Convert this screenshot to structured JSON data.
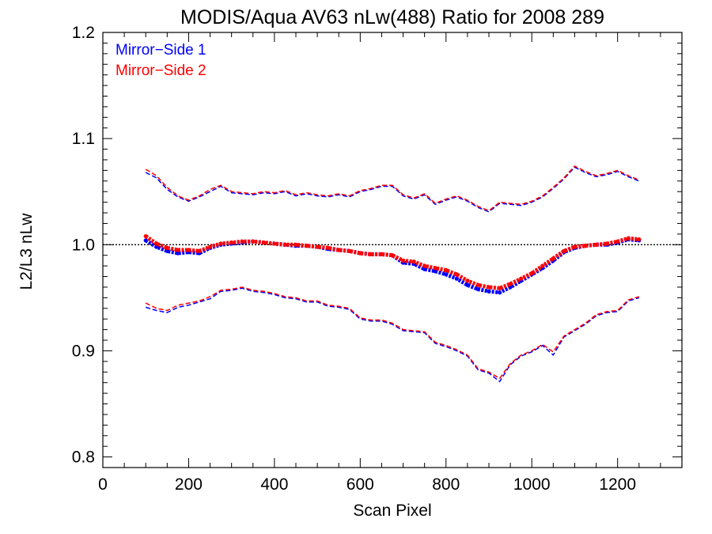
{
  "chart_data": {
    "type": "scatter",
    "title": "MODIS/Aqua AV63 nLw(488) Ratio for 2008 289",
    "xlabel": "Scan Pixel",
    "ylabel": "L2/L3 nLw",
    "xlim": [
      0,
      1350
    ],
    "ylim": [
      0.79,
      1.2
    ],
    "xticks": [
      0,
      200,
      400,
      600,
      800,
      1000,
      1200
    ],
    "xtick_labels": [
      "0",
      "200",
      "400",
      "600",
      "800",
      "1000",
      "1200"
    ],
    "yticks": [
      0.8,
      0.9,
      1.0,
      1.1,
      1.2
    ],
    "ytick_labels": [
      "0.8",
      "0.9",
      "1.0",
      "1.1",
      "1.2"
    ],
    "reference_line": 1.0,
    "legend_position": "top-left",
    "grid": false,
    "colors": {
      "mirror_side_1": "#0000ff",
      "mirror_side_2": "#ff0000"
    },
    "series": [
      {
        "name": "Mirror−Side 1",
        "color": "#0000ff",
        "x": [
          100,
          125,
          150,
          175,
          200,
          225,
          250,
          275,
          300,
          325,
          350,
          375,
          400,
          425,
          450,
          475,
          500,
          525,
          550,
          575,
          600,
          625,
          650,
          675,
          700,
          725,
          750,
          775,
          800,
          825,
          850,
          875,
          900,
          925,
          950,
          975,
          1000,
          1025,
          1050,
          1075,
          1100,
          1125,
          1150,
          1175,
          1200,
          1225,
          1250
        ],
        "mean": [
          1.004,
          0.998,
          0.994,
          0.992,
          0.993,
          0.992,
          0.997,
          1.0,
          1.001,
          1.002,
          1.003,
          1.002,
          1.001,
          1.0,
          0.999,
          0.999,
          0.998,
          0.996,
          0.995,
          0.994,
          0.992,
          0.991,
          0.991,
          0.99,
          0.983,
          0.982,
          0.977,
          0.975,
          0.972,
          0.968,
          0.962,
          0.958,
          0.956,
          0.955,
          0.96,
          0.966,
          0.972,
          0.978,
          0.985,
          0.993,
          0.997,
          0.999,
          1.0,
          1.0,
          1.002,
          1.005,
          1.004
        ],
        "upper": [
          1.068,
          1.063,
          1.052,
          1.045,
          1.041,
          1.045,
          1.05,
          1.055,
          1.049,
          1.048,
          1.047,
          1.049,
          1.048,
          1.05,
          1.046,
          1.048,
          1.046,
          1.045,
          1.047,
          1.045,
          1.05,
          1.052,
          1.055,
          1.055,
          1.046,
          1.043,
          1.047,
          1.038,
          1.042,
          1.045,
          1.041,
          1.035,
          1.031,
          1.039,
          1.038,
          1.037,
          1.04,
          1.045,
          1.053,
          1.062,
          1.073,
          1.068,
          1.064,
          1.066,
          1.069,
          1.064,
          1.06
        ],
        "lower": [
          0.941,
          0.938,
          0.936,
          0.941,
          0.943,
          0.946,
          0.949,
          0.956,
          0.957,
          0.959,
          0.956,
          0.955,
          0.953,
          0.95,
          0.949,
          0.946,
          0.946,
          0.942,
          0.941,
          0.939,
          0.93,
          0.928,
          0.928,
          0.925,
          0.919,
          0.918,
          0.917,
          0.907,
          0.904,
          0.9,
          0.895,
          0.882,
          0.879,
          0.871,
          0.887,
          0.895,
          0.899,
          0.905,
          0.896,
          0.913,
          0.919,
          0.925,
          0.933,
          0.936,
          0.937,
          0.947,
          0.95
        ]
      },
      {
        "name": "Mirror−Side 2",
        "color": "#ff0000",
        "x": [
          100,
          125,
          150,
          175,
          200,
          225,
          250,
          275,
          300,
          325,
          350,
          375,
          400,
          425,
          450,
          475,
          500,
          525,
          550,
          575,
          600,
          625,
          650,
          675,
          700,
          725,
          750,
          775,
          800,
          825,
          850,
          875,
          900,
          925,
          950,
          975,
          1000,
          1025,
          1050,
          1075,
          1100,
          1125,
          1150,
          1175,
          1200,
          1225,
          1250
        ],
        "mean": [
          1.008,
          1.001,
          0.997,
          0.995,
          0.995,
          0.994,
          0.998,
          1.001,
          1.002,
          1.003,
          1.003,
          1.002,
          1.001,
          1.0,
          1.0,
          0.999,
          0.998,
          0.997,
          0.995,
          0.994,
          0.992,
          0.991,
          0.991,
          0.99,
          0.985,
          0.984,
          0.98,
          0.978,
          0.976,
          0.972,
          0.966,
          0.962,
          0.96,
          0.959,
          0.963,
          0.968,
          0.973,
          0.98,
          0.987,
          0.994,
          0.998,
          0.999,
          1.0,
          1.001,
          1.003,
          1.006,
          1.005
        ],
        "upper": [
          1.071,
          1.065,
          1.054,
          1.046,
          1.042,
          1.046,
          1.052,
          1.056,
          1.05,
          1.049,
          1.048,
          1.05,
          1.049,
          1.051,
          1.047,
          1.049,
          1.047,
          1.046,
          1.048,
          1.046,
          1.051,
          1.053,
          1.056,
          1.056,
          1.047,
          1.044,
          1.048,
          1.039,
          1.043,
          1.046,
          1.042,
          1.036,
          1.032,
          1.04,
          1.039,
          1.038,
          1.041,
          1.046,
          1.054,
          1.063,
          1.074,
          1.069,
          1.065,
          1.067,
          1.07,
          1.065,
          1.061
        ],
        "lower": [
          0.945,
          0.94,
          0.938,
          0.943,
          0.945,
          0.947,
          0.951,
          0.957,
          0.958,
          0.96,
          0.957,
          0.956,
          0.954,
          0.951,
          0.95,
          0.947,
          0.947,
          0.943,
          0.942,
          0.94,
          0.931,
          0.929,
          0.929,
          0.926,
          0.92,
          0.919,
          0.918,
          0.908,
          0.905,
          0.901,
          0.896,
          0.883,
          0.88,
          0.874,
          0.888,
          0.896,
          0.9,
          0.906,
          0.899,
          0.914,
          0.92,
          0.926,
          0.934,
          0.937,
          0.938,
          0.948,
          0.951
        ]
      }
    ]
  }
}
